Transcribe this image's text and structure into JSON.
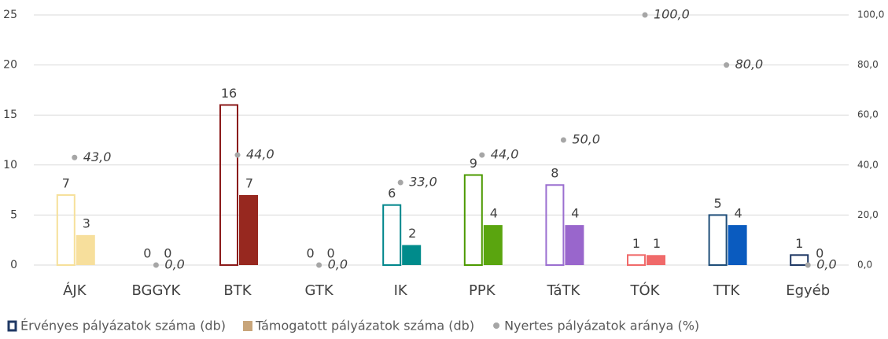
{
  "chart_data": {
    "type": "bar",
    "categories": [
      "ÁJK",
      "BGGYK",
      "BTK",
      "GTK",
      "IK",
      "PPK",
      "TáTK",
      "TÓK",
      "TTK",
      "Egyéb"
    ],
    "series": [
      {
        "name": "Érvényes pályázatok száma (db)",
        "type": "bar",
        "style": "outline",
        "color": "#1f3864",
        "colors": [
          "#f6e09a",
          "#bfbfbf",
          "#8b1a1a",
          "#bfbfbf",
          "#00868b",
          "#4c9a00",
          "#9b6fd0",
          "#f06a6a",
          "#1f4e79",
          "#1f3864"
        ],
        "values": [
          7,
          0,
          16,
          0,
          6,
          9,
          8,
          1,
          5,
          1
        ]
      },
      {
        "name": "Támogatott pályázatok száma (db)",
        "type": "bar",
        "style": "filled",
        "color": "#c8a57a",
        "colors": [
          "#f7df9c",
          "#bfbfbf",
          "#97281f",
          "#bfbfbf",
          "#008b8b",
          "#5aa50f",
          "#9966cc",
          "#f06a6a",
          "#0a5bbf",
          "#1f3864"
        ],
        "values": [
          3,
          0,
          7,
          0,
          2,
          4,
          4,
          1,
          4,
          0
        ]
      },
      {
        "name": "Nyertes pályázatok aránya (%)",
        "type": "scatter",
        "axis": "y2",
        "color": "#a6a6a6",
        "values": [
          43,
          0,
          44,
          0,
          33,
          44,
          50,
          100,
          80,
          0
        ],
        "value_labels": [
          "43,0",
          "0,0",
          "44,0",
          "0,0",
          "33,0",
          "44,0",
          "50,0",
          "100,0",
          "80,0",
          "0,0"
        ]
      }
    ],
    "ylim": [
      0,
      25
    ],
    "yticks": [
      0,
      5,
      10,
      15,
      20,
      25
    ],
    "y2lim": [
      0,
      100
    ],
    "y2ticks": [
      {
        "value": 0,
        "label": "0,0"
      },
      {
        "value": 20,
        "label": "20,0"
      },
      {
        "value": 40,
        "label": "40,0"
      },
      {
        "value": 60,
        "label": "60,0"
      },
      {
        "value": 80,
        "label": "80,0"
      },
      {
        "value": 100,
        "label": "100,0"
      }
    ],
    "grid": true,
    "legend": "bottom"
  }
}
